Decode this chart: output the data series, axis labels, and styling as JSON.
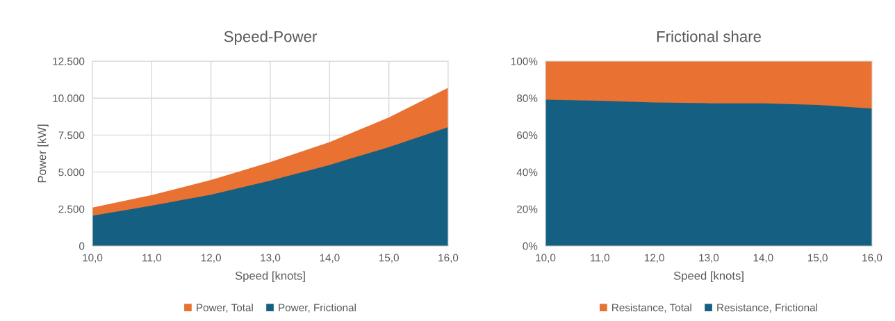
{
  "chart_data": [
    {
      "type": "area",
      "title": "Speed-Power",
      "xlabel": "Speed [knots]",
      "ylabel": "Power [kW]",
      "x": [
        10,
        11,
        12,
        13,
        14,
        15,
        16
      ],
      "series": [
        {
          "name": "Power, Total",
          "color": "#e97132",
          "values": [
            2600,
            3440,
            4460,
            5680,
            7020,
            8690,
            10700
          ]
        },
        {
          "name": "Power, Frictional",
          "color": "#156082",
          "values": [
            2040,
            2730,
            3470,
            4420,
            5480,
            6690,
            8040
          ]
        }
      ],
      "xlim": [
        10,
        16
      ],
      "xticks": [
        {
          "value": 10,
          "label": "10,0"
        },
        {
          "value": 11,
          "label": "11,0"
        },
        {
          "value": 12,
          "label": "12,0"
        },
        {
          "value": 13,
          "label": "13,0"
        },
        {
          "value": 14,
          "label": "14,0"
        },
        {
          "value": 15,
          "label": "15,0"
        },
        {
          "value": 16,
          "label": "16,0"
        }
      ],
      "ylim": [
        0,
        12500
      ],
      "yticks": [
        0,
        {
          "value": 2500,
          "label": "2.500"
        },
        {
          "value": 5000,
          "label": "5.000"
        },
        {
          "value": 7500,
          "label": "7.500"
        },
        {
          "value": 10000,
          "label": "10.000"
        },
        {
          "value": 12500,
          "label": "12.500"
        }
      ],
      "grid": true,
      "legend": "bottom"
    },
    {
      "type": "area",
      "title": "Frictional share",
      "xlabel": "Speed [knots]",
      "x": [
        10,
        11,
        12,
        13,
        14,
        15,
        16
      ],
      "series": [
        {
          "name": "Resistance, Total",
          "color": "#e97132",
          "values": [
            100,
            100,
            100,
            100,
            100,
            100,
            100
          ]
        },
        {
          "name": "Resistance, Frictional",
          "color": "#156082",
          "values": [
            79.1,
            78.6,
            77.6,
            77.2,
            77.2,
            76.3,
            74.3
          ]
        }
      ],
      "xlim": [
        10,
        16
      ],
      "xticks": [
        {
          "value": 10,
          "label": "10,0"
        },
        {
          "value": 11,
          "label": "11,0"
        },
        {
          "value": 12,
          "label": "12,0"
        },
        {
          "value": 13,
          "label": "13,0"
        },
        {
          "value": 14,
          "label": "14,0"
        },
        {
          "value": 15,
          "label": "15,0"
        },
        {
          "value": 16,
          "label": "16,0"
        }
      ],
      "ylim": [
        0,
        100
      ],
      "yticks": [
        {
          "value": 0,
          "label": "0%"
        },
        {
          "value": 20,
          "label": "20%"
        },
        {
          "value": 40,
          "label": "40%"
        },
        {
          "value": 60,
          "label": "60%"
        },
        {
          "value": 80,
          "label": "80%"
        },
        {
          "value": 100,
          "label": "100%"
        }
      ],
      "grid": false,
      "legend": "bottom"
    }
  ]
}
